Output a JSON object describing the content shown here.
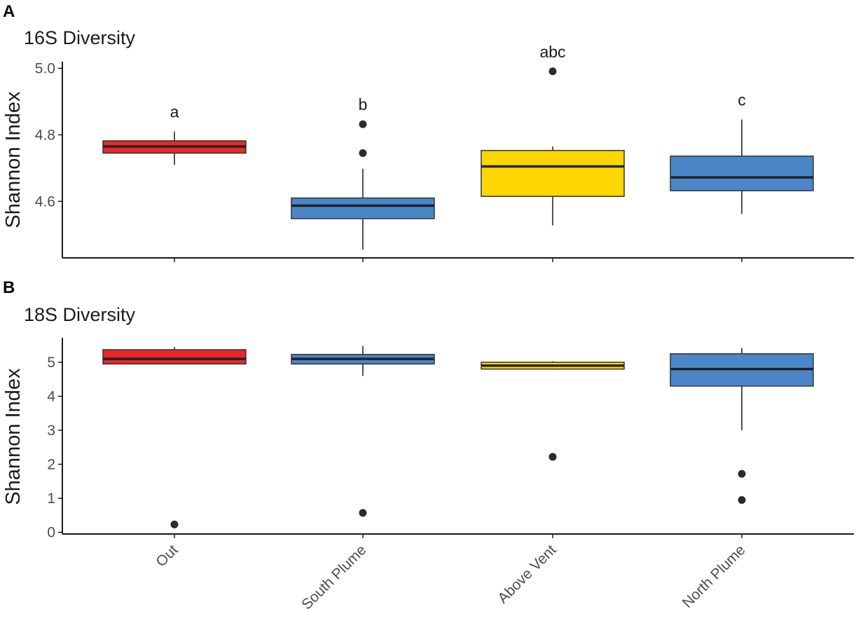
{
  "panels": {
    "a": {
      "letter": "A",
      "title": "16S Diversity"
    },
    "b": {
      "letter": "B",
      "title": "18S Diversity"
    }
  },
  "colors": {
    "Out": "#e8272c",
    "South Plume": "#4a86c8",
    "Above Vent": "#ffd700",
    "North Plume": "#4a86c8"
  },
  "chart_data": [
    {
      "type": "box",
      "title": "16S Diversity",
      "ylabel": "Shannon Index",
      "xlabel": "",
      "ylim": [
        4.43,
        5.02
      ],
      "yticks": [
        4.6,
        4.8,
        5.0
      ],
      "ytick_labels": [
        "4.6",
        "4.8",
        "5.0"
      ],
      "categories": [
        "Out",
        "South Plume",
        "Above Vent",
        "North Plume"
      ],
      "boxes": [
        {
          "category": "Out",
          "whisker_low": 4.71,
          "q1": 4.745,
          "median": 4.765,
          "q3": 4.782,
          "whisker_high": 4.81,
          "outliers": [],
          "letter": "a"
        },
        {
          "category": "South Plume",
          "whisker_low": 4.455,
          "q1": 4.548,
          "median": 4.587,
          "q3": 4.61,
          "whisker_high": 4.698,
          "outliers": [
            4.745,
            4.832
          ],
          "letter": "b"
        },
        {
          "category": "Above Vent",
          "whisker_low": 4.528,
          "q1": 4.615,
          "median": 4.705,
          "q3": 4.753,
          "whisker_high": 4.765,
          "outliers": [
            4.991
          ],
          "letter": "abc"
        },
        {
          "category": "North Plume",
          "whisker_low": 4.562,
          "q1": 4.632,
          "median": 4.672,
          "q3": 4.736,
          "whisker_high": 4.846,
          "outliers": [],
          "letter": "c"
        }
      ]
    },
    {
      "type": "box",
      "title": "18S Diversity",
      "ylabel": "Shannon Index",
      "xlabel": "",
      "ylim": [
        -0.05,
        5.72
      ],
      "yticks": [
        0,
        1,
        2,
        3,
        4,
        5
      ],
      "ytick_labels": [
        "0",
        "1",
        "2",
        "3",
        "4",
        "5"
      ],
      "categories": [
        "Out",
        "South Plume",
        "Above Vent",
        "North Plume"
      ],
      "boxes": [
        {
          "category": "Out",
          "whisker_low": 4.95,
          "q1": 4.95,
          "median": 5.1,
          "q3": 5.37,
          "whisker_high": 5.45,
          "outliers": [
            0.23
          ]
        },
        {
          "category": "South Plume",
          "whisker_low": 4.6,
          "q1": 4.95,
          "median": 5.1,
          "q3": 5.23,
          "whisker_high": 5.48,
          "outliers": [
            0.57
          ]
        },
        {
          "category": "Above Vent",
          "whisker_low": 4.78,
          "q1": 4.8,
          "median": 4.9,
          "q3": 5.0,
          "whisker_high": 5.03,
          "outliers": [
            2.22
          ]
        },
        {
          "category": "North Plume",
          "whisker_low": 3.0,
          "q1": 4.3,
          "median": 4.8,
          "q3": 5.25,
          "whisker_high": 5.42,
          "outliers": [
            1.72,
            0.95
          ]
        }
      ]
    }
  ]
}
